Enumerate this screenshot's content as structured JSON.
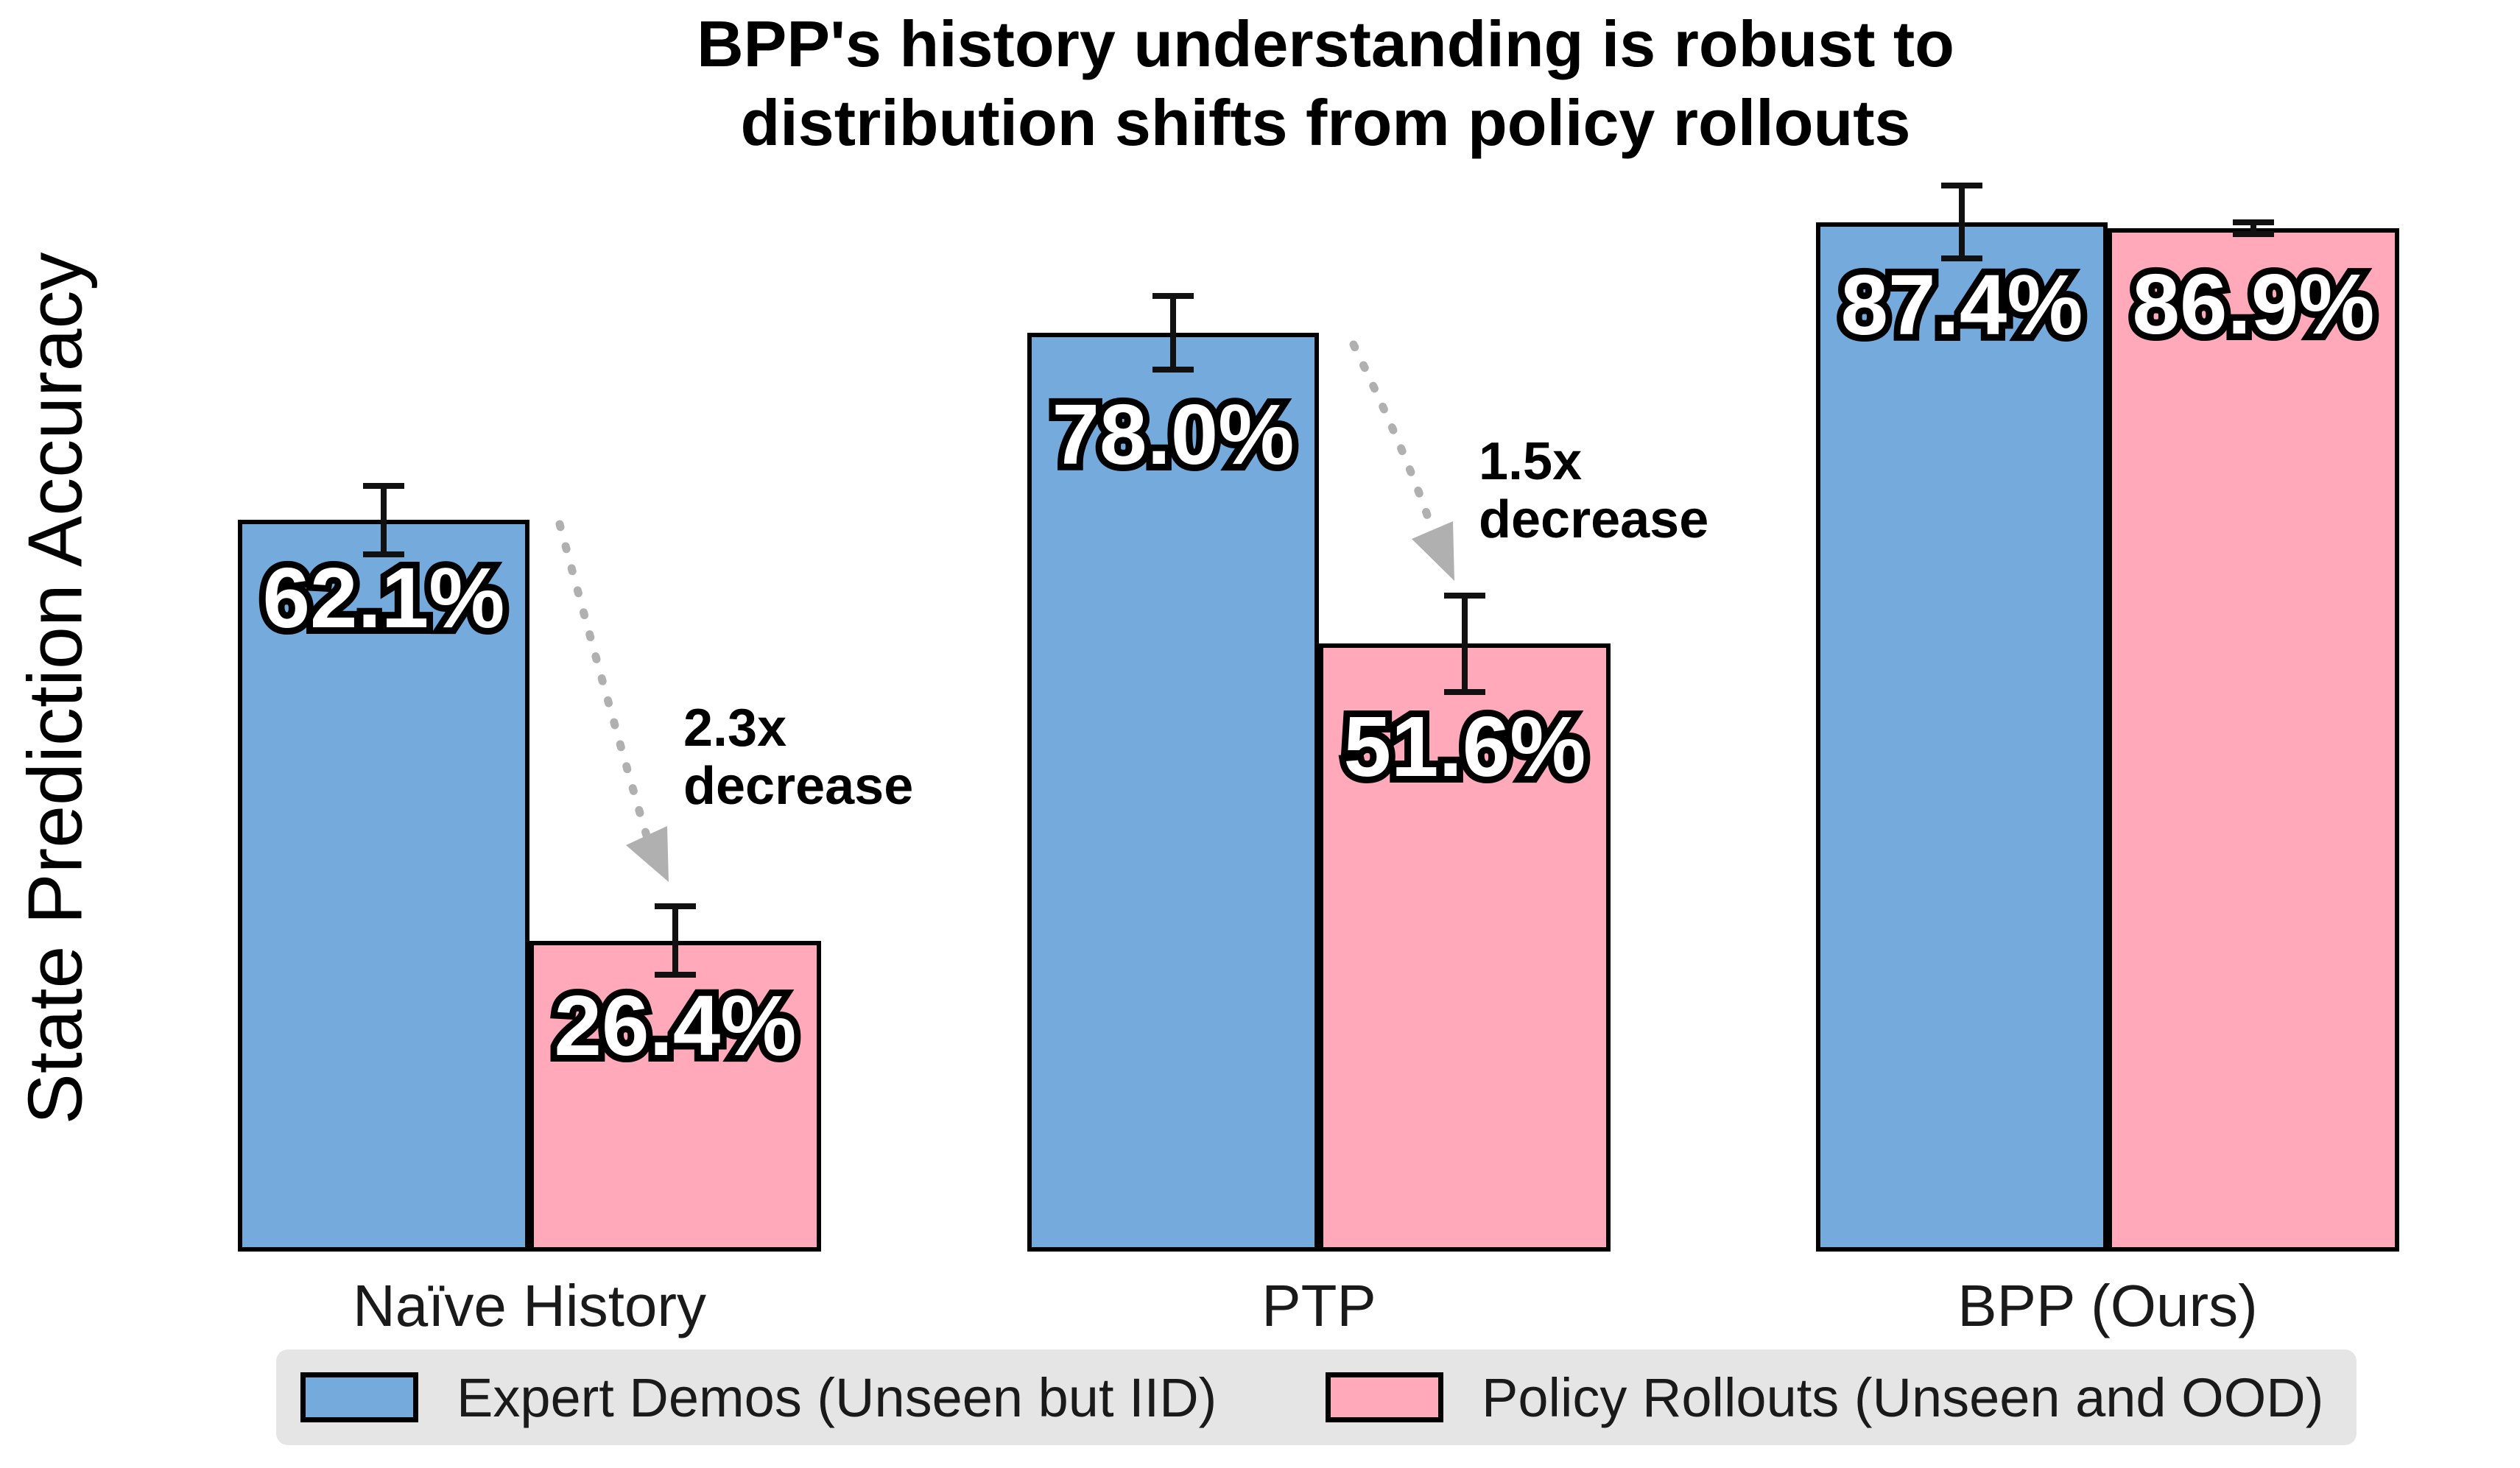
{
  "figure": {
    "title_line1": "BPP's history understanding is robust to",
    "title_line2": "distribution shifts from policy rollouts"
  },
  "chart_data": {
    "type": "bar",
    "title": "BPP's history understanding is robust to distribution shifts from policy rollouts",
    "xlabel": "",
    "ylabel": "State Prediction Accuracy",
    "ylim": [
      0,
      95
    ],
    "grid": false,
    "y_axis_ticks_visible": false,
    "legend_position": "bottom",
    "categories": [
      "Naïve History",
      "PTP",
      "BPP (Ours)"
    ],
    "series": [
      {
        "name": "Expert Demos (Unseen but IID)",
        "color": "#75aadc",
        "values": [
          62.1,
          78.0,
          87.4
        ],
        "errors": [
          2.9,
          3.1,
          3.1
        ],
        "data_labels": [
          "62.1%",
          "78.0%",
          "87.4%"
        ]
      },
      {
        "name": "Policy Rollouts (Unseen and OOD)",
        "color": "#ffa9bb",
        "values": [
          26.4,
          51.6,
          86.9
        ],
        "errors": [
          2.9,
          4.1,
          0.5
        ],
        "data_labels": [
          "26.4%",
          "51.6%",
          "86.9%"
        ]
      }
    ],
    "annotations": [
      {
        "line1": "2.3x",
        "line2": "decrease",
        "group": "Naïve History"
      },
      {
        "line1": "1.5x",
        "line2": "decrease",
        "group": "PTP"
      }
    ]
  },
  "colors": {
    "bar_edge": "#000000",
    "error_bar": "#111111",
    "arrow": "#b0b0b0",
    "legend_background": "#e5e5e5",
    "value_label_fill": "#ffffff",
    "value_label_outline": "#000000"
  }
}
